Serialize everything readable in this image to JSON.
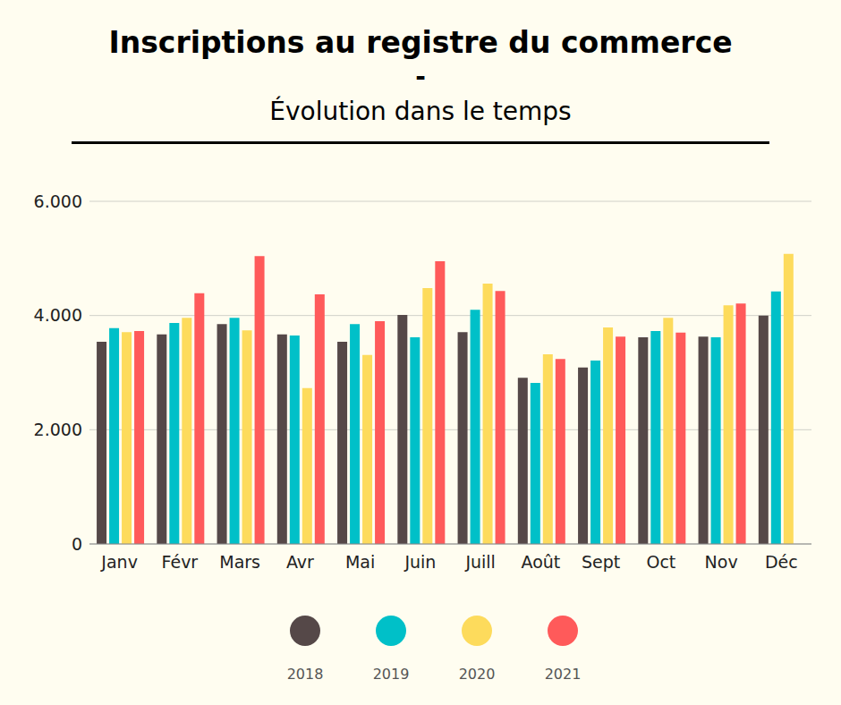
{
  "chart_data": {
    "type": "bar",
    "title": "Inscriptions au registre du commerce",
    "title_separator": "-",
    "subtitle": "Évolution dans le temps",
    "categories": [
      "Janv",
      "Févr",
      "Mars",
      "Avr",
      "Mai",
      "Juin",
      "Juill",
      "Août",
      "Sept",
      "Oct",
      "Nov",
      "Déc"
    ],
    "series": [
      {
        "name": "2018",
        "color": "#554848",
        "values": [
          3540,
          3670,
          3850,
          3670,
          3540,
          4010,
          3710,
          2910,
          3090,
          3620,
          3630,
          4000
        ]
      },
      {
        "name": "2019",
        "color": "#00c0c8",
        "values": [
          3780,
          3870,
          3960,
          3650,
          3850,
          3620,
          4100,
          2820,
          3210,
          3730,
          3620,
          4420
        ]
      },
      {
        "name": "2020",
        "color": "#fddb5c",
        "values": [
          3710,
          3960,
          3740,
          2730,
          3310,
          4480,
          4560,
          3320,
          3790,
          3960,
          4180,
          5080
        ]
      },
      {
        "name": "2021",
        "color": "#ff5a5a",
        "values": [
          3730,
          4390,
          5040,
          4370,
          3900,
          4950,
          4430,
          3240,
          3630,
          3700,
          4210,
          null
        ]
      }
    ],
    "ylim": [
      0,
      6000
    ],
    "yticks": [
      0,
      {
        "value": 2000,
        "label": "2.000"
      },
      {
        "value": 4000,
        "label": "4.000"
      },
      {
        "value": 6000,
        "label": "6.000"
      }
    ],
    "grid": true,
    "legend": "bottom"
  }
}
